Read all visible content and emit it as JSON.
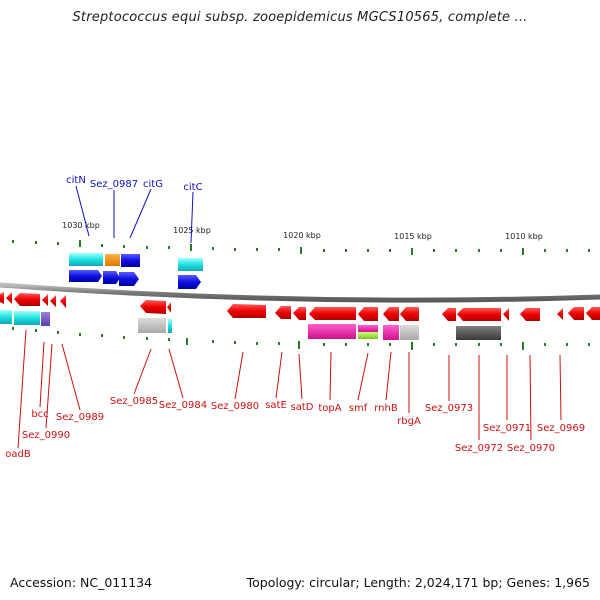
{
  "title": "Streptococcus equi subsp. zooepidemicus MGCS10565, complete ...",
  "footer": {
    "accession": "Accession: NC_011134",
    "summary": "Topology: circular; Length: 2,024,171 bp; Genes: 1,965"
  },
  "colors": {
    "backbone": "#888888",
    "tick": "#2a7a2a",
    "label_blue": "#1010c0",
    "label_red": "#cc1010"
  },
  "scale_labels": [
    "1030 kbp",
    "1025 kbp",
    "1020 kbp",
    "1015 kbp",
    "1010 kbp"
  ],
  "top_labels": [
    "citN",
    "Sez_0987",
    "citG",
    "citC"
  ],
  "bottom_labels": [
    "oadB",
    "bcc",
    "Sez_0990",
    "Sez_0989",
    "Sez_0985",
    "Sez_0984",
    "Sez_0980",
    "satE",
    "satD",
    "topA",
    "smf",
    "rnhB",
    "rbgA",
    "Sez_0973",
    "Sez_0972",
    "Sez_0971",
    "Sez_0970",
    "Sez_0969"
  ]
}
